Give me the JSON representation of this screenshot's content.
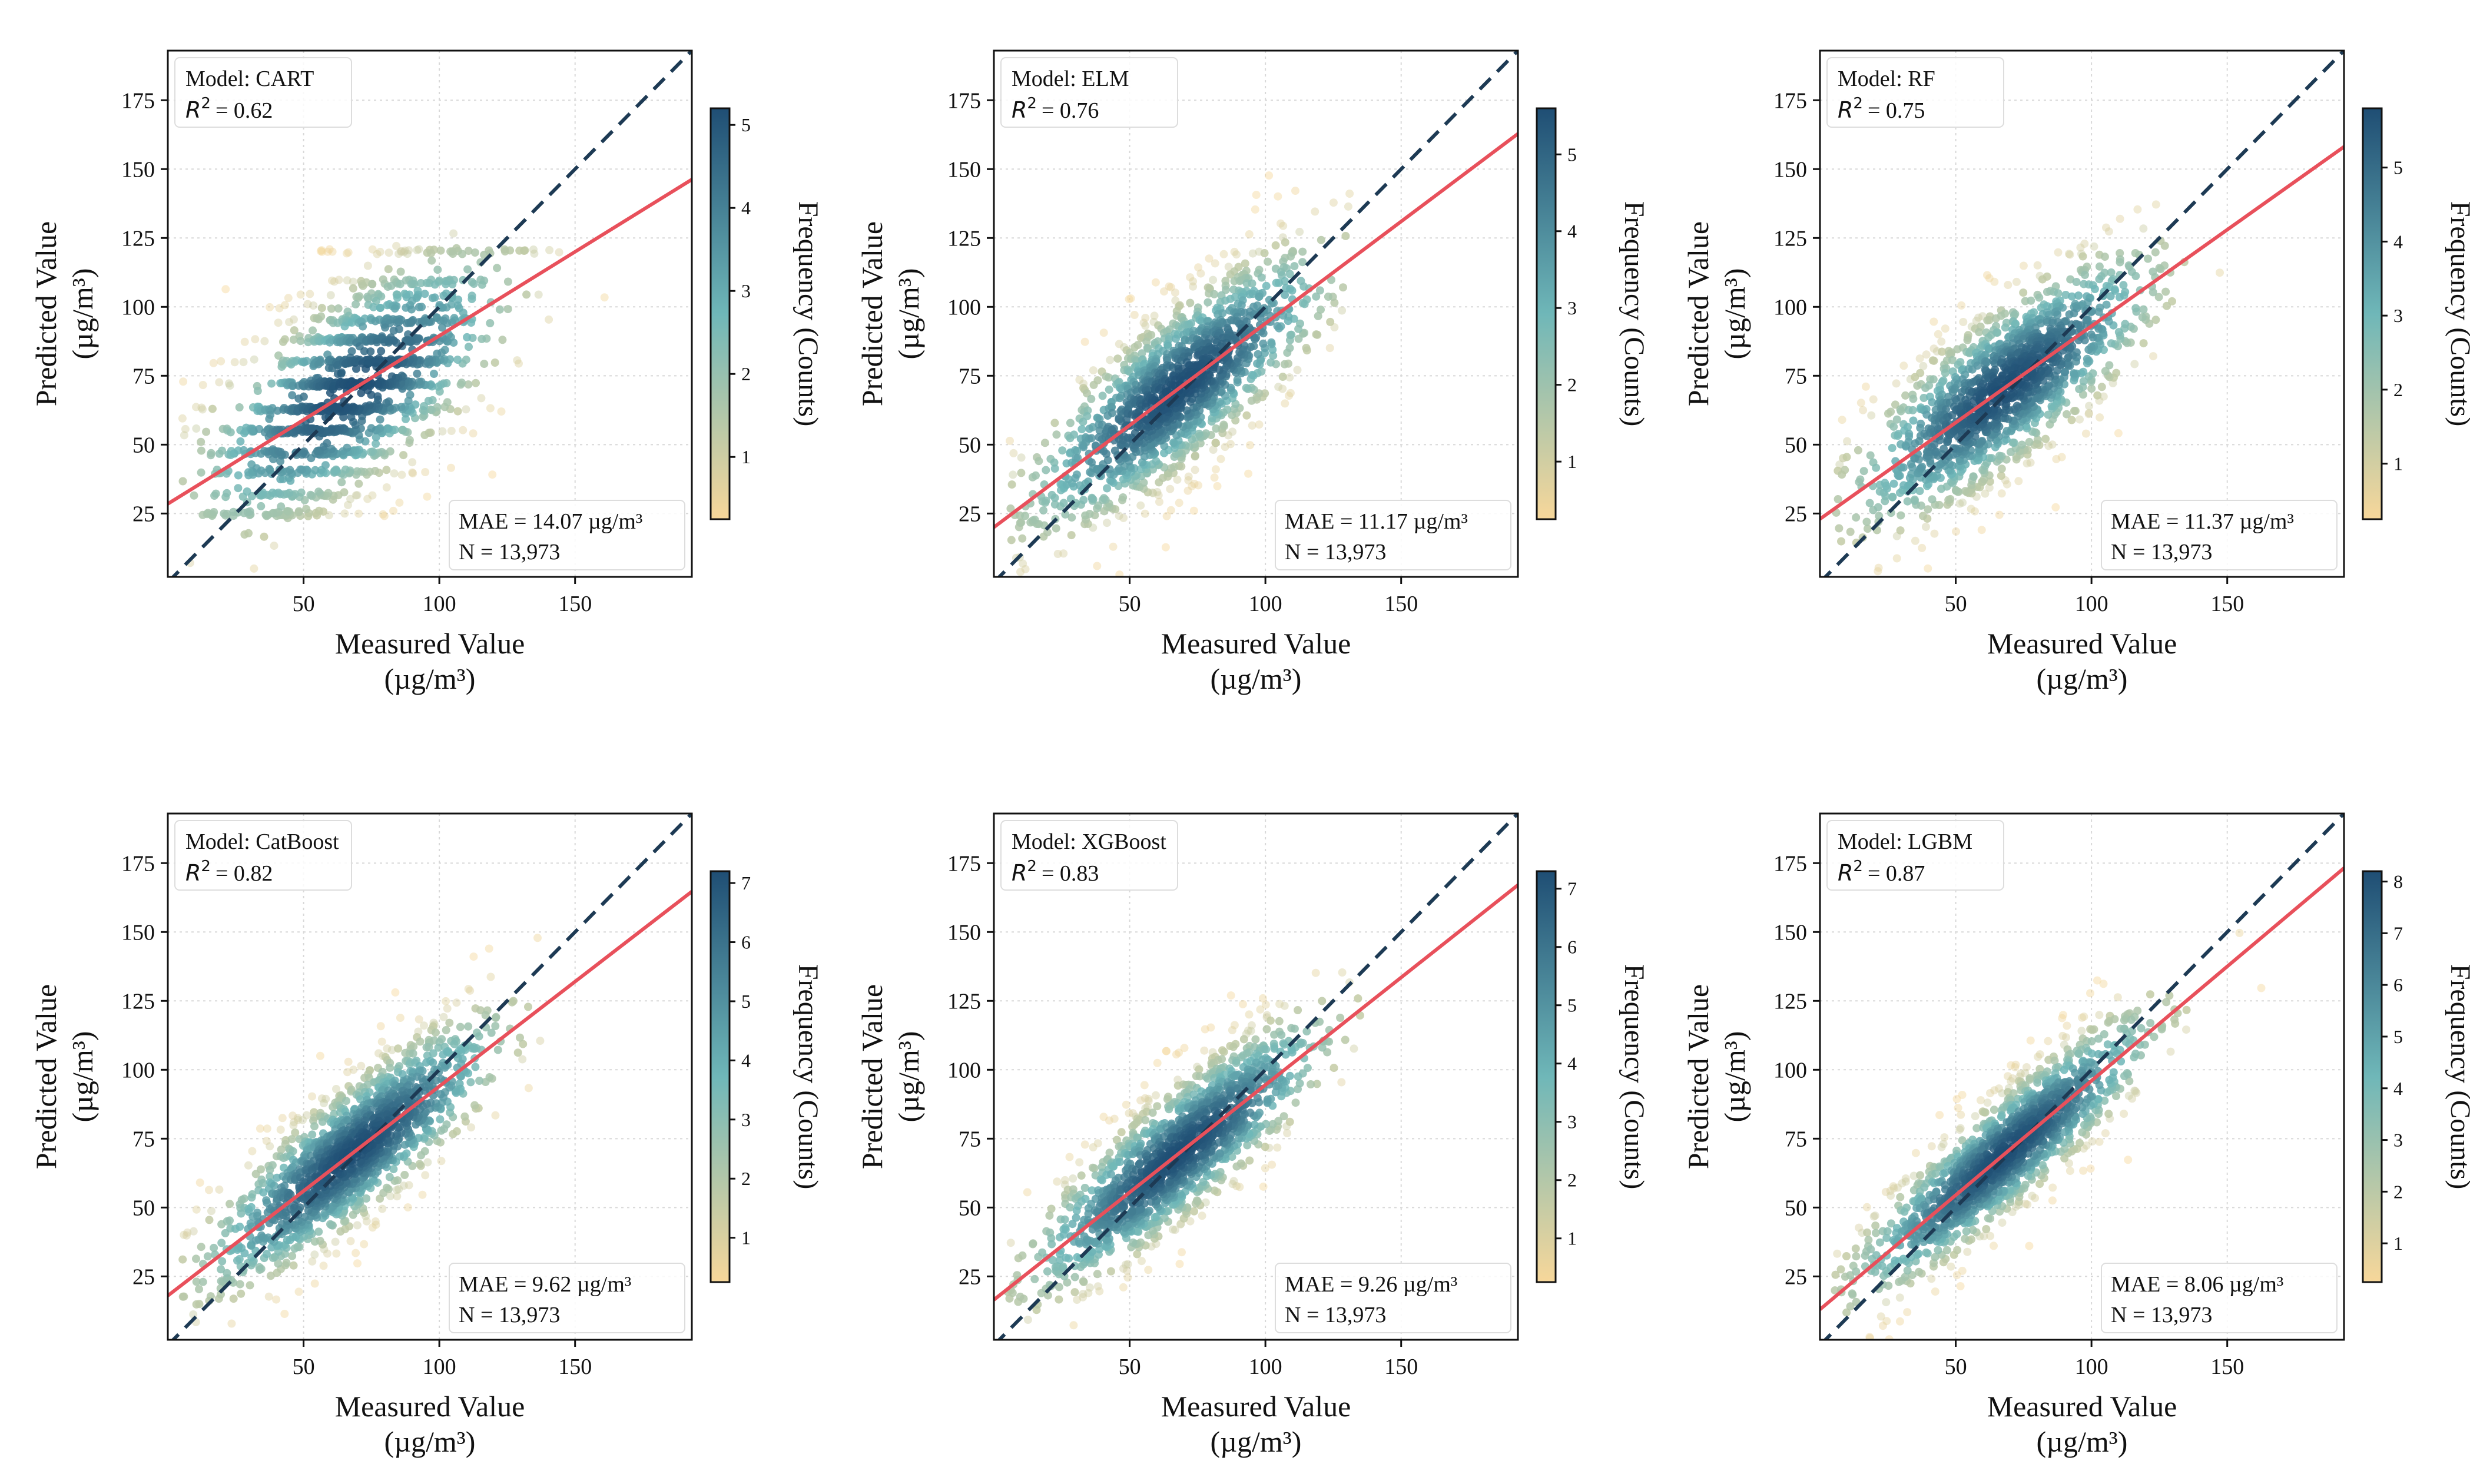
{
  "figure": {
    "xlabel_line1": "Measured Value",
    "xlabel_line2": "(µg/m³)",
    "ylabel_line1": "Predicted Value",
    "ylabel_line2": "(µg/m³)",
    "colorbar_label": "Frequency (Counts)",
    "colors": {
      "low": "#f7d79a",
      "mid": "#6fb7b8",
      "high": "#1f4e74",
      "identity": "#1d3a54",
      "fit": "#e8505b",
      "grid": "#d8d8d8"
    }
  },
  "chart_data": [
    {
      "type": "scatter",
      "model_label": "Model: CART",
      "r2_value": "= 0.62",
      "mae_label": "MAE = 14.07 µg/m³",
      "n_label": "N = 13,973",
      "xlim": [
        0,
        193
      ],
      "ylim": [
        2,
        193
      ],
      "x_ticks": [
        50,
        100,
        150
      ],
      "y_ticks": [
        25,
        50,
        75,
        100,
        125,
        150,
        175
      ],
      "fit": {
        "slope": 0.61,
        "intercept": 28.5
      },
      "density_cmax": 5.2,
      "colorbar_ticks": [
        1,
        2,
        3,
        4,
        5
      ],
      "stepped_levels": [
        25,
        32,
        40,
        47,
        55,
        63,
        72,
        80,
        88,
        95,
        100,
        104,
        109,
        120
      ]
    },
    {
      "type": "scatter",
      "model_label": "Model: ELM",
      "r2_value": "= 0.76",
      "mae_label": "MAE = 11.17 µg/m³",
      "n_label": "N = 13,973",
      "xlim": [
        0,
        193
      ],
      "ylim": [
        2,
        193
      ],
      "x_ticks": [
        50,
        100,
        150
      ],
      "y_ticks": [
        25,
        50,
        75,
        100,
        125,
        150,
        175
      ],
      "fit": {
        "slope": 0.74,
        "intercept": 20
      },
      "density_cmax": 5.6,
      "colorbar_ticks": [
        1,
        2,
        3,
        4,
        5
      ]
    },
    {
      "type": "scatter",
      "model_label": "Model: RF",
      "r2_value": "= 0.75",
      "mae_label": "MAE = 11.37 µg/m³",
      "n_label": "N = 13,973",
      "xlim": [
        0,
        193
      ],
      "ylim": [
        2,
        193
      ],
      "x_ticks": [
        50,
        100,
        150
      ],
      "y_ticks": [
        25,
        50,
        75,
        100,
        125,
        150,
        175
      ],
      "fit": {
        "slope": 0.7,
        "intercept": 23
      },
      "density_cmax": 5.8,
      "colorbar_ticks": [
        1,
        2,
        3,
        4,
        5
      ]
    },
    {
      "type": "scatter",
      "model_label": "Model: CatBoost",
      "r2_value": "= 0.82",
      "mae_label": "MAE = 9.62 µg/m³",
      "n_label": "N = 13,973",
      "xlim": [
        0,
        193
      ],
      "ylim": [
        2,
        193
      ],
      "x_ticks": [
        50,
        100,
        150
      ],
      "y_ticks": [
        25,
        50,
        75,
        100,
        125,
        150,
        175
      ],
      "fit": {
        "slope": 0.76,
        "intercept": 18
      },
      "density_cmax": 7.2,
      "colorbar_ticks": [
        1,
        2,
        3,
        4,
        5,
        6,
        7
      ]
    },
    {
      "type": "scatter",
      "model_label": "Model: XGBoost",
      "r2_value": "= 0.83",
      "mae_label": "MAE = 9.26 µg/m³",
      "n_label": "N = 13,973",
      "xlim": [
        0,
        193
      ],
      "ylim": [
        2,
        193
      ],
      "x_ticks": [
        50,
        100,
        150
      ],
      "y_ticks": [
        25,
        50,
        75,
        100,
        125,
        150,
        175
      ],
      "fit": {
        "slope": 0.78,
        "intercept": 16.5
      },
      "density_cmax": 7.3,
      "colorbar_ticks": [
        1,
        2,
        3,
        4,
        5,
        6,
        7
      ]
    },
    {
      "type": "scatter",
      "model_label": "Model: LGBM",
      "r2_value": "= 0.87",
      "mae_label": "MAE = 8.06 µg/m³",
      "n_label": "N = 13,973",
      "xlim": [
        0,
        193
      ],
      "ylim": [
        2,
        193
      ],
      "x_ticks": [
        50,
        100,
        150
      ],
      "y_ticks": [
        25,
        50,
        75,
        100,
        125,
        150,
        175
      ],
      "fit": {
        "slope": 0.83,
        "intercept": 13
      },
      "density_cmax": 8.2,
      "colorbar_ticks": [
        1,
        2,
        3,
        4,
        5,
        6,
        7,
        8
      ]
    }
  ]
}
